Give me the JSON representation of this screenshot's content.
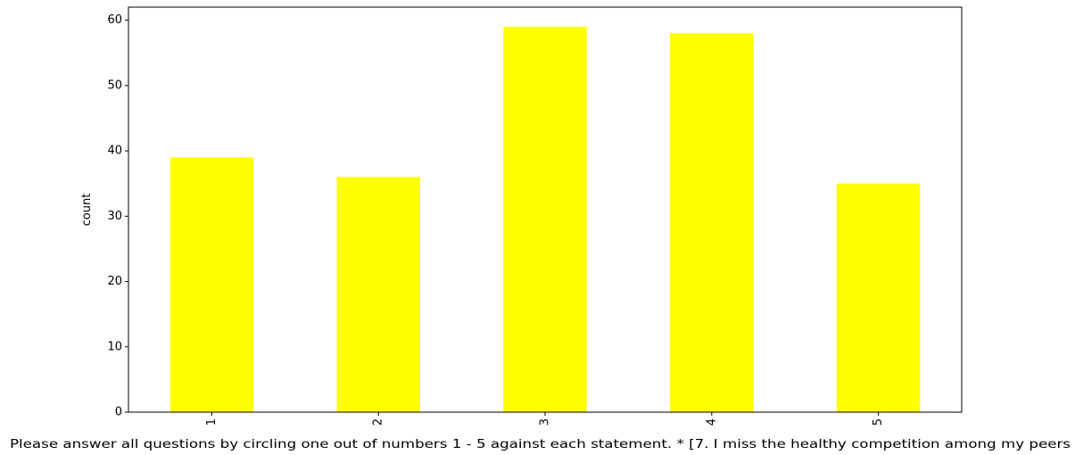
{
  "chart_data": {
    "type": "bar",
    "categories": [
      "1",
      "2",
      "3",
      "4",
      "5"
    ],
    "values": [
      39,
      36,
      59,
      58,
      35
    ],
    "title": "",
    "xlabel": "Please answer all questions by circling one out of numbers 1 - 5 against each statement. * [7. I miss the healthy competition among my peers",
    "ylabel": "count",
    "ylim": [
      0,
      62
    ],
    "yticks": [
      0,
      10,
      20,
      30,
      40,
      50,
      60
    ],
    "grid": false,
    "bar_color": "#ffff00"
  }
}
